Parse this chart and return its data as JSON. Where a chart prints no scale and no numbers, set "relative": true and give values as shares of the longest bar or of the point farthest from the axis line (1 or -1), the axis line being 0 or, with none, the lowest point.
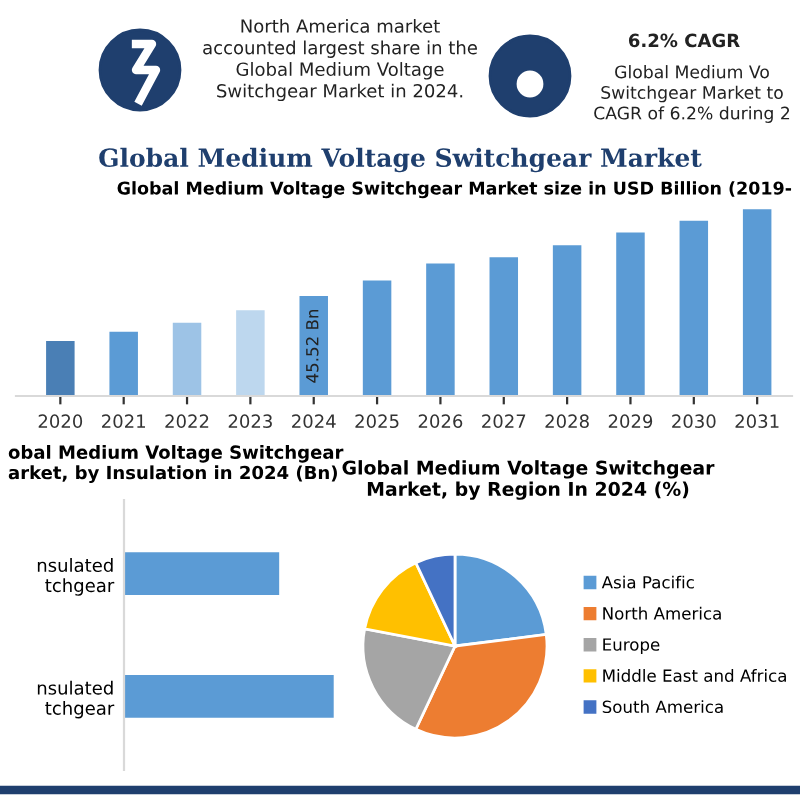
{
  "chart_data": [
    {
      "type": "other",
      "title": "Global Medium Voltage Switchgear Market",
      "annotations": [
        "North America market\naccounted largest share in the\nGlobal Medium Voltage\nSwitchgear Market in 2024.",
        "6.2% CAGR",
        "Global Medium Vo\nSwitchgear Market to\nCAGR of 6.2% during 2"
      ]
    },
    {
      "type": "bar",
      "title": "Global Medium Voltage Switchgear Market size in USD Billion (2019-",
      "categories": [
        "2020",
        "2021",
        "2022",
        "2023",
        "2024",
        "2025",
        "2026",
        "2027",
        "2028",
        "2029",
        "2030",
        "2031"
      ],
      "values": [
        25.0,
        29.2,
        33.3,
        39.1,
        45.52,
        52.6,
        60.3,
        63.2,
        68.6,
        74.4,
        79.8,
        85.0
      ],
      "tick_labels": "x",
      "colors": [
        "#4a7fb5",
        "#5b9bd5",
        "#9dc3e6",
        "#bdd7ee",
        "#5b9bd5",
        "#5b9bd5",
        "#5b9bd5",
        "#5b9bd5",
        "#5b9bd5",
        "#5b9bd5",
        "#5b9bd5",
        "#5b9bd5"
      ],
      "value_labels": [
        null,
        null,
        null,
        null,
        "45.52 Bn",
        null,
        null,
        null,
        null,
        null,
        null,
        null
      ]
    },
    {
      "type": "bar",
      "orientation": "horizontal",
      "title": "obal Medium Voltage Switchgear\narket, by Insulation in 2024 (Bn)",
      "categories": [
        "nsulated\ntchgear",
        "nsulated\ntchgear"
      ],
      "values": [
        0.74,
        1.0
      ],
      "color": "#5b9bd5",
      "relative": true
    },
    {
      "type": "pie",
      "title": "Global Medium Voltage Switchgear\nMarket, by Region In 2024 (%)",
      "categories": [
        "Asia Pacific",
        "North America",
        "Europe",
        "Middle East and Africa",
        "South America"
      ],
      "values": [
        23,
        34,
        21,
        15,
        7
      ],
      "colors": [
        "#5b9bd5",
        "#ed7d31",
        "#a5a5a5",
        "#ffc000",
        "#4472c4"
      ],
      "legend": "right"
    }
  ]
}
